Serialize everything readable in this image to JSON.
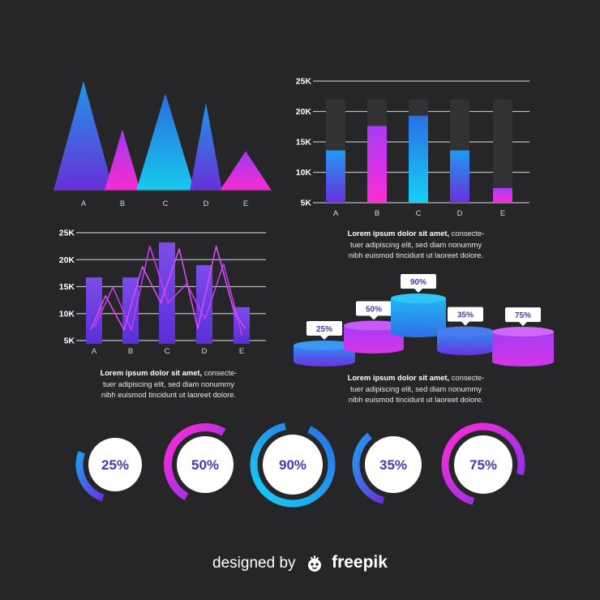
{
  "colors": {
    "background": "#262628",
    "blue": "#1f9bf0",
    "purple": "#6b2fe0",
    "magenta": "#ff2bd8",
    "cyan": "#16d0f5",
    "track": "#323234",
    "grid": "#b9b9c0"
  },
  "chart_data": [
    {
      "type": "area",
      "shape": "triangles",
      "categories": [
        "A",
        "B",
        "C",
        "D",
        "E"
      ],
      "series": [
        {
          "values": [
            100,
            56,
            89,
            80,
            36
          ]
        }
      ],
      "ylim": [
        0,
        100
      ]
    },
    {
      "type": "bar",
      "categories": [
        "A",
        "B",
        "C",
        "D",
        "E"
      ],
      "y_ticks": [
        "5K",
        "10K",
        "15K",
        "20K",
        "25K"
      ],
      "ylim": [
        3000,
        25000
      ],
      "capacity": 22000,
      "values": [
        13600,
        17600,
        19300,
        13600,
        7400
      ]
    },
    {
      "type": "bar",
      "overlay_type": "line",
      "categories": [
        "A",
        "B",
        "C",
        "D",
        "E"
      ],
      "y_ticks": [
        "5K",
        "10K",
        "15K",
        "20K",
        "25K"
      ],
      "ylim": [
        4000,
        25000
      ],
      "values": [
        16700,
        16700,
        23200,
        19000,
        11200
      ],
      "line_series": [
        {
          "x": [
            0.45,
            0.95,
            1.45,
            1.95,
            2.45,
            2.95,
            3.45,
            3.95,
            4.45
          ],
          "y": [
            7500,
            14900,
            7000,
            22500,
            12000,
            15500,
            9000,
            19200,
            6000
          ]
        },
        {
          "x": [
            0.35,
            0.75,
            1.25,
            1.75,
            2.25,
            2.75,
            3.25,
            3.75,
            4.25,
            4.55
          ],
          "y": [
            7000,
            13300,
            7000,
            18700,
            12000,
            22000,
            7200,
            22500,
            10000,
            7200
          ]
        }
      ]
    },
    {
      "type": "bar",
      "shape": "cylinders",
      "labels": [
        "25%",
        "50%",
        "90%",
        "35%",
        "75%"
      ],
      "values": [
        25,
        50,
        90,
        35,
        75
      ]
    },
    {
      "type": "pie",
      "shape": "progress-rings",
      "labels": [
        "25%",
        "50%",
        "90%",
        "35%",
        "75%"
      ],
      "values": [
        25,
        50,
        90,
        35,
        75
      ]
    }
  ],
  "texts": {
    "lorem_bold": "Lorem ipsum dolor sit amet,",
    "lorem_rest1": " consecte-",
    "lorem_line2": "tuer adipiscing elit, sed diam nonummy",
    "lorem_line3": "nibh euismod tincidunt ut laoreet dolore."
  },
  "footer": {
    "designed": "designed by",
    "brand": "freepik",
    "logo_icon": "freepik-logo-icon"
  }
}
